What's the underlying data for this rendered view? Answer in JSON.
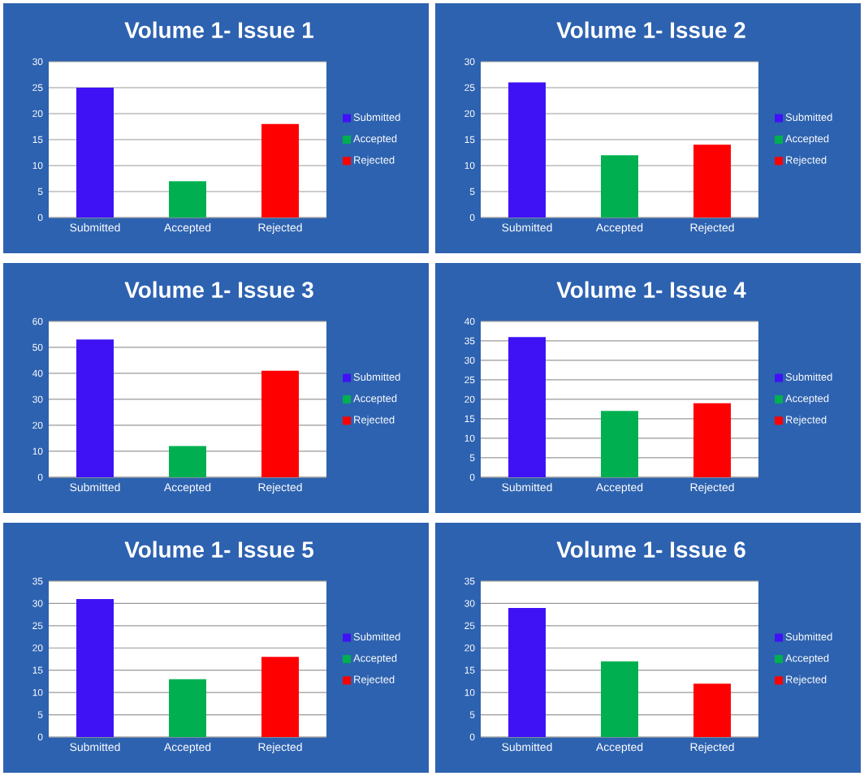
{
  "chart_data": [
    {
      "type": "bar",
      "title": "Volume 1- Issue 1",
      "categories": [
        "Submitted",
        "Accepted",
        "Rejected"
      ],
      "series": [
        {
          "name": "Submitted",
          "color": "#3f12f5",
          "values": [
            25,
            null,
            null
          ]
        },
        {
          "name": "Accepted",
          "color": "#00b050",
          "values": [
            null,
            7,
            null
          ]
        },
        {
          "name": "Rejected",
          "color": "#ff0000",
          "values": [
            null,
            null,
            18
          ]
        }
      ],
      "ylim": [
        0,
        30
      ],
      "yticks": [
        0,
        5,
        10,
        15,
        20,
        25,
        30
      ],
      "grid": "y",
      "legend": "right"
    },
    {
      "type": "bar",
      "title": "Volume 1- Issue 2",
      "categories": [
        "Submitted",
        "Accepted",
        "Rejected"
      ],
      "series": [
        {
          "name": "Submitted",
          "color": "#3f12f5",
          "values": [
            26,
            null,
            null
          ]
        },
        {
          "name": "Accepted",
          "color": "#00b050",
          "values": [
            null,
            12,
            null
          ]
        },
        {
          "name": "Rejected",
          "color": "#ff0000",
          "values": [
            null,
            null,
            14
          ]
        }
      ],
      "ylim": [
        0,
        30
      ],
      "yticks": [
        0,
        5,
        10,
        15,
        20,
        25,
        30
      ],
      "grid": "y",
      "legend": "right"
    },
    {
      "type": "bar",
      "title": "Volume 1- Issue 3",
      "categories": [
        "Submitted",
        "Accepted",
        "Rejected"
      ],
      "series": [
        {
          "name": "Submitted",
          "color": "#3f12f5",
          "values": [
            53,
            null,
            null
          ]
        },
        {
          "name": "Accepted",
          "color": "#00b050",
          "values": [
            null,
            12,
            null
          ]
        },
        {
          "name": "Rejected",
          "color": "#ff0000",
          "values": [
            null,
            null,
            41
          ]
        }
      ],
      "ylim": [
        0,
        60
      ],
      "yticks": [
        0,
        10,
        20,
        30,
        40,
        50,
        60
      ],
      "grid": "y",
      "legend": "right"
    },
    {
      "type": "bar",
      "title": "Volume 1- Issue 4",
      "categories": [
        "Submitted",
        "Accepted",
        "Rejected"
      ],
      "series": [
        {
          "name": "Submitted",
          "color": "#3f12f5",
          "values": [
            36,
            null,
            null
          ]
        },
        {
          "name": "Accepted",
          "color": "#00b050",
          "values": [
            null,
            17,
            null
          ]
        },
        {
          "name": "Rejected",
          "color": "#ff0000",
          "values": [
            null,
            null,
            19
          ]
        }
      ],
      "ylim": [
        0,
        40
      ],
      "yticks": [
        0,
        5,
        10,
        15,
        20,
        25,
        30,
        35,
        40
      ],
      "grid": "y",
      "legend": "right"
    },
    {
      "type": "bar",
      "title": "Volume 1- Issue 5",
      "categories": [
        "Submitted",
        "Accepted",
        "Rejected"
      ],
      "series": [
        {
          "name": "Submitted",
          "color": "#3f12f5",
          "values": [
            31,
            null,
            null
          ]
        },
        {
          "name": "Accepted",
          "color": "#00b050",
          "values": [
            null,
            13,
            null
          ]
        },
        {
          "name": "Rejected",
          "color": "#ff0000",
          "values": [
            null,
            null,
            18
          ]
        }
      ],
      "ylim": [
        0,
        35
      ],
      "yticks": [
        0,
        5,
        10,
        15,
        20,
        25,
        30,
        35
      ],
      "grid": "y",
      "legend": "right"
    },
    {
      "type": "bar",
      "title": "Volume 1- Issue 6",
      "categories": [
        "Submitted",
        "Accepted",
        "Rejected"
      ],
      "series": [
        {
          "name": "Submitted",
          "color": "#3f12f5",
          "values": [
            29,
            null,
            null
          ]
        },
        {
          "name": "Accepted",
          "color": "#00b050",
          "values": [
            null,
            17,
            null
          ]
        },
        {
          "name": "Rejected",
          "color": "#ff0000",
          "values": [
            null,
            null,
            12
          ]
        }
      ],
      "ylim": [
        0,
        35
      ],
      "yticks": [
        0,
        5,
        10,
        15,
        20,
        25,
        30,
        35
      ],
      "grid": "y",
      "legend": "right"
    }
  ]
}
